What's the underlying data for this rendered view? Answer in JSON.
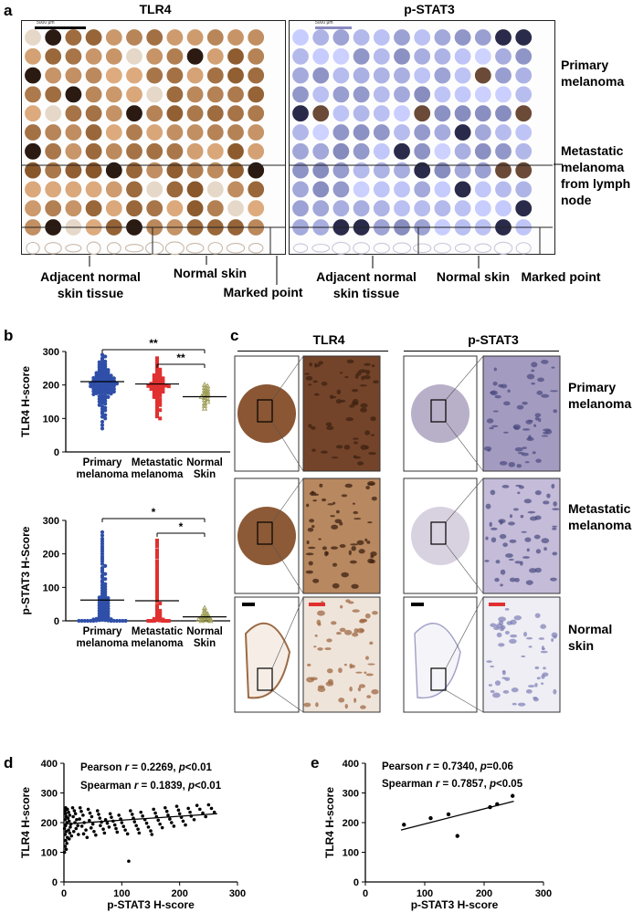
{
  "panel_a": {
    "label": "a",
    "left_title": "TLR4",
    "right_title": "p-STAT3",
    "scalebar_text": "5000 μm",
    "row_labels": [
      "Primary melanoma",
      "Metastatic melanoma from lymph node"
    ],
    "bottom_labels": {
      "adjacent": [
        "Adjacent normal",
        "skin tissue"
      ],
      "normal": "Normal skin",
      "marked": "Marked point"
    },
    "colors": {
      "tlr4_stain": "#8a5a36",
      "pstat3_stain": "#8f8fc4"
    }
  },
  "panel_b": {
    "label": "b",
    "groups": [
      [
        "Primary",
        "melanoma"
      ],
      [
        "Metastatic",
        "melanoma"
      ],
      [
        "Normal",
        "Skin"
      ]
    ],
    "significance": {
      "double": "**",
      "single": "*"
    }
  },
  "panel_c": {
    "label": "c",
    "col_titles": [
      "TLR4",
      "p-STAT3"
    ],
    "row_labels": [
      [
        "Primary",
        "melanoma"
      ],
      [
        "Metastatic",
        "melanoma"
      ],
      [
        "Normal",
        "skin"
      ]
    ]
  },
  "panel_d": {
    "label": "d",
    "pearson": {
      "prefix": "Pearson ",
      "sym": "r",
      "mid": " = 0.2269, ",
      "psym": "p",
      "suffix": "<0.01"
    },
    "spearman": {
      "prefix": "Spearman ",
      "sym": "r",
      "mid": " = 0.1839, ",
      "psym": "p",
      "suffix": "<0.01"
    }
  },
  "panel_e": {
    "label": "e",
    "pearson": {
      "prefix": "Pearson ",
      "sym": "r",
      "mid": " = 0.7340, ",
      "psym": "p",
      "suffix": "=0.06"
    },
    "spearman": {
      "prefix": "Spearman ",
      "sym": "r",
      "mid": " = 0.7857, ",
      "psym": "p",
      "suffix": "<0.05"
    }
  },
  "chart_data": [
    {
      "type": "scatter",
      "panel": "b-top",
      "ylabel": "TLR4 H-score",
      "ylim": [
        0,
        300
      ],
      "yticks": [
        0,
        100,
        200,
        300
      ],
      "categories": [
        "Primary melanoma",
        "Metastatic melanoma",
        "Normal Skin"
      ],
      "means": [
        210,
        203,
        165
      ],
      "colors": [
        "#2f4fa8",
        "#e03030",
        "#9a9a50"
      ],
      "markers": [
        "circle",
        "square",
        "triangle"
      ],
      "ranges": [
        [
          70,
          290
        ],
        [
          100,
          280
        ],
        [
          130,
          200
        ]
      ],
      "counts": [
        110,
        60,
        18
      ],
      "values": [
        [
          290,
          285,
          280,
          275,
          270,
          268,
          265,
          262,
          260,
          258,
          255,
          253,
          250,
          248,
          246,
          245,
          243,
          241,
          240,
          238,
          236,
          235,
          233,
          232,
          230,
          229,
          228,
          227,
          226,
          225,
          224,
          223,
          222,
          221,
          220,
          219,
          218,
          217,
          216,
          215,
          214,
          213,
          212,
          211,
          210,
          210,
          209,
          208,
          207,
          206,
          205,
          205,
          204,
          203,
          202,
          201,
          200,
          200,
          199,
          198,
          197,
          196,
          195,
          194,
          193,
          192,
          191,
          190,
          189,
          188,
          187,
          186,
          185,
          184,
          183,
          182,
          181,
          180,
          179,
          178,
          177,
          176,
          175,
          174,
          172,
          170,
          168,
          166,
          164,
          162,
          160,
          158,
          155,
          152,
          150,
          147,
          144,
          140,
          136,
          132,
          128,
          124,
          120,
          115,
          110,
          105,
          100,
          90,
          80,
          70
        ],
        [
          280,
          270,
          262,
          255,
          250,
          246,
          242,
          238,
          235,
          232,
          229,
          226,
          224,
          222,
          220,
          218,
          216,
          214,
          212,
          210,
          208,
          206,
          205,
          204,
          203,
          202,
          201,
          200,
          199,
          198,
          197,
          196,
          195,
          194,
          192,
          190,
          188,
          186,
          184,
          182,
          180,
          178,
          175,
          172,
          170,
          167,
          164,
          160,
          156,
          152,
          148,
          144,
          140,
          135,
          130,
          125,
          120,
          112,
          106,
          100
        ],
        [
          200,
          196,
          192,
          188,
          184,
          180,
          177,
          174,
          171,
          168,
          165,
          162,
          158,
          155,
          150,
          145,
          138,
          130
        ]
      ],
      "brackets": [
        {
          "from": 0,
          "to": 2,
          "label": "**"
        },
        {
          "from": 1,
          "to": 2,
          "label": "**"
        }
      ]
    },
    {
      "type": "scatter",
      "panel": "b-bottom",
      "ylabel": "p-STAT3 H-Score",
      "ylim": [
        0,
        300
      ],
      "yticks": [
        0,
        100,
        200,
        300
      ],
      "categories": [
        "Primary melanoma",
        "Metastatic melanoma",
        "Normal Skin"
      ],
      "means": [
        62,
        60,
        12
      ],
      "colors": [
        "#2f4fa8",
        "#e03030",
        "#9a9a50"
      ],
      "markers": [
        "circle",
        "square",
        "triangle"
      ],
      "values": [
        [
          265,
          255,
          245,
          238,
          230,
          222,
          215,
          208,
          200,
          192,
          185,
          178,
          170,
          164,
          158,
          152,
          146,
          140,
          135,
          130,
          125,
          120,
          115,
          110,
          106,
          102,
          98,
          94,
          90,
          86,
          82,
          78,
          75,
          72,
          70,
          68,
          66,
          64,
          62,
          60,
          58,
          56,
          54,
          52,
          50,
          48,
          46,
          44,
          42,
          40,
          38,
          36,
          34,
          32,
          30,
          28,
          26,
          24,
          22,
          20,
          18,
          16,
          14,
          12,
          10,
          9,
          8,
          7,
          6,
          5,
          4,
          3,
          2,
          2,
          1,
          1,
          0,
          0,
          0,
          0,
          0,
          0,
          0,
          0,
          0,
          0,
          0,
          0
        ],
        [
          240,
          232,
          222,
          210,
          200,
          190,
          178,
          168,
          158,
          148,
          138,
          128,
          120,
          110,
          100,
          92,
          84,
          76,
          70,
          64,
          58,
          52,
          46,
          40,
          35,
          30,
          26,
          22,
          18,
          14,
          10,
          8,
          6,
          4,
          2,
          1,
          0,
          0,
          0,
          0,
          0,
          0
        ],
        [
          38,
          30,
          24,
          20,
          16,
          14,
          12,
          10,
          8,
          6,
          5,
          4,
          3,
          2,
          0,
          0
        ]
      ],
      "brackets": [
        {
          "from": 0,
          "to": 2,
          "label": "*"
        },
        {
          "from": 1,
          "to": 2,
          "label": "*"
        }
      ]
    },
    {
      "type": "scatter",
      "panel": "d",
      "xlabel": "p-STAT3 H-score",
      "ylabel": "TLR4 H-score",
      "xlim": [
        0,
        300
      ],
      "ylim": [
        0,
        400
      ],
      "xticks": [
        0,
        100,
        200,
        300
      ],
      "yticks": [
        0,
        100,
        200,
        300,
        400
      ],
      "fit": {
        "x": [
          0,
          265
        ],
        "y": [
          195,
          230
        ]
      },
      "points": [
        [
          2,
          240
        ],
        [
          3,
          230
        ],
        [
          4,
          220
        ],
        [
          2,
          210
        ],
        [
          5,
          200
        ],
        [
          3,
          190
        ],
        [
          1,
          180
        ],
        [
          4,
          170
        ],
        [
          2,
          160
        ],
        [
          6,
          150
        ],
        [
          3,
          140
        ],
        [
          5,
          130
        ],
        [
          2,
          120
        ],
        [
          4,
          110
        ],
        [
          1,
          100
        ],
        [
          3,
          250
        ],
        [
          6,
          245
        ],
        [
          8,
          235
        ],
        [
          10,
          225
        ],
        [
          7,
          215
        ],
        [
          9,
          205
        ],
        [
          12,
          195
        ],
        [
          11,
          185
        ],
        [
          8,
          175
        ],
        [
          10,
          165
        ],
        [
          13,
          155
        ],
        [
          9,
          145
        ],
        [
          15,
          250
        ],
        [
          18,
          240
        ],
        [
          20,
          230
        ],
        [
          16,
          220
        ],
        [
          22,
          210
        ],
        [
          19,
          200
        ],
        [
          24,
          190
        ],
        [
          21,
          180
        ],
        [
          17,
          170
        ],
        [
          25,
          160
        ],
        [
          28,
          250
        ],
        [
          30,
          238
        ],
        [
          33,
          225
        ],
        [
          27,
          212
        ],
        [
          35,
          200
        ],
        [
          31,
          188
        ],
        [
          38,
          175
        ],
        [
          34,
          162
        ],
        [
          40,
          150
        ],
        [
          42,
          245
        ],
        [
          45,
          232
        ],
        [
          48,
          220
        ],
        [
          44,
          207
        ],
        [
          50,
          195
        ],
        [
          47,
          182
        ],
        [
          52,
          170
        ],
        [
          55,
          158
        ],
        [
          58,
          240
        ],
        [
          60,
          228
        ],
        [
          62,
          215
        ],
        [
          65,
          202
        ],
        [
          63,
          190
        ],
        [
          68,
          178
        ],
        [
          70,
          165
        ],
        [
          72,
          210
        ],
        [
          75,
          198
        ],
        [
          78,
          185
        ],
        [
          80,
          230
        ],
        [
          82,
          218
        ],
        [
          85,
          205
        ],
        [
          88,
          192
        ],
        [
          90,
          180
        ],
        [
          92,
          168
        ],
        [
          95,
          225
        ],
        [
          98,
          212
        ],
        [
          100,
          200
        ],
        [
          103,
          187
        ],
        [
          106,
          175
        ],
        [
          110,
          162
        ],
        [
          112,
          70
        ],
        [
          115,
          240
        ],
        [
          118,
          228
        ],
        [
          120,
          215
        ],
        [
          122,
          203
        ],
        [
          125,
          190
        ],
        [
          128,
          178
        ],
        [
          130,
          165
        ],
        [
          133,
          235
        ],
        [
          136,
          222
        ],
        [
          140,
          210
        ],
        [
          143,
          198
        ],
        [
          146,
          185
        ],
        [
          150,
          172
        ],
        [
          152,
          160
        ],
        [
          155,
          245
        ],
        [
          158,
          232
        ],
        [
          160,
          220
        ],
        [
          163,
          208
        ],
        [
          166,
          195
        ],
        [
          170,
          183
        ],
        [
          175,
          250
        ],
        [
          178,
          238
        ],
        [
          180,
          225
        ],
        [
          183,
          212
        ],
        [
          186,
          200
        ],
        [
          190,
          188
        ],
        [
          195,
          255
        ],
        [
          198,
          242
        ],
        [
          200,
          230
        ],
        [
          203,
          218
        ],
        [
          206,
          205
        ],
        [
          210,
          192
        ],
        [
          215,
          248
        ],
        [
          218,
          235
        ],
        [
          220,
          222
        ],
        [
          225,
          210
        ],
        [
          230,
          258
        ],
        [
          235,
          245
        ],
        [
          240,
          232
        ],
        [
          245,
          220
        ],
        [
          250,
          260
        ],
        [
          255,
          248
        ],
        [
          260,
          235
        ]
      ]
    },
    {
      "type": "scatter",
      "panel": "e",
      "xlabel": "p-STAT3 H-score",
      "ylabel": "TLR4 H-score",
      "xlim": [
        0,
        300
      ],
      "ylim": [
        0,
        400
      ],
      "xticks": [
        0,
        100,
        200,
        300
      ],
      "yticks": [
        0,
        100,
        200,
        300,
        400
      ],
      "fit": {
        "x": [
          60,
          250
        ],
        "y": [
          175,
          272
        ]
      },
      "points": [
        [
          65,
          193
        ],
        [
          110,
          215
        ],
        [
          140,
          228
        ],
        [
          155,
          155
        ],
        [
          210,
          252
        ],
        [
          222,
          262
        ],
        [
          248,
          290
        ]
      ]
    }
  ]
}
